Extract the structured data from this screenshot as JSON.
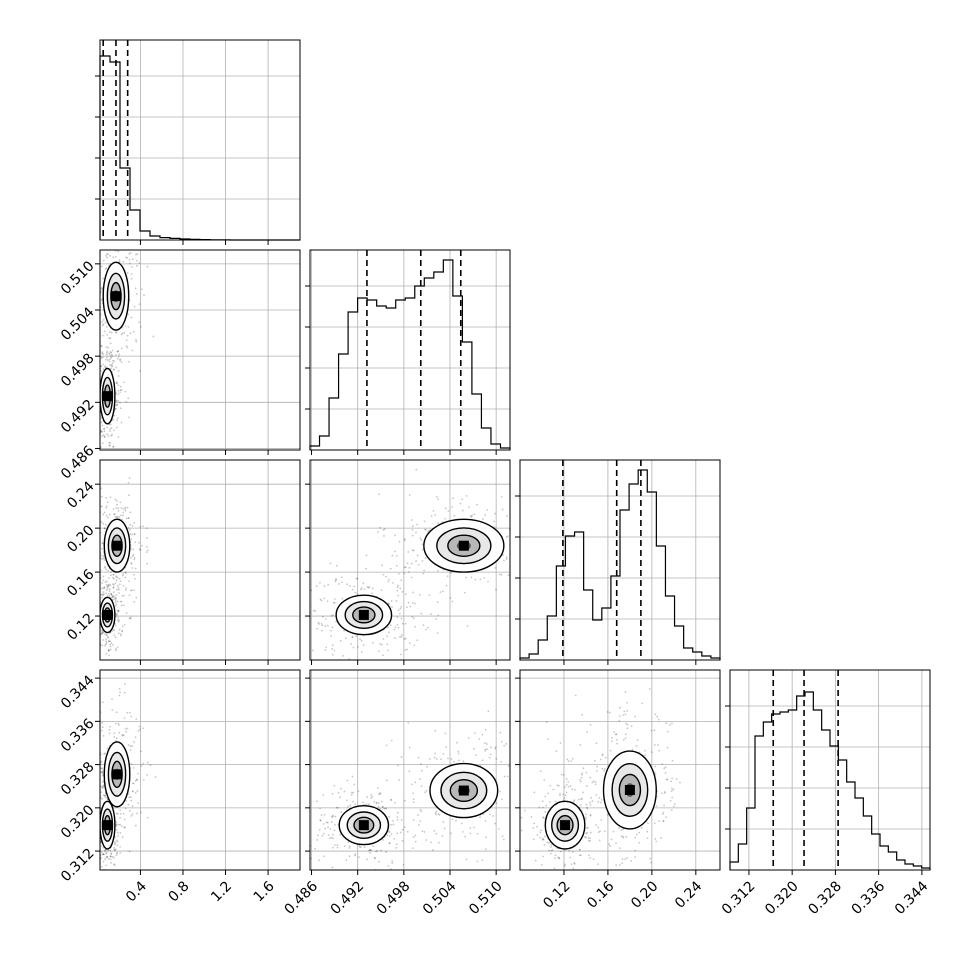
{
  "chart_data": {
    "type": "scatter",
    "subtype": "corner-plot",
    "variables": [
      {
        "ticks": [
          0.4,
          0.8,
          1.2,
          1.6
        ],
        "tick_labels": [
          "0.4",
          "0.8",
          "1.2",
          "1.6"
        ],
        "range": [
          0.02,
          1.9
        ],
        "quantiles": [
          0.05,
          0.17,
          0.28
        ],
        "hist": [
          0.92,
          0.89,
          0.36,
          0.15,
          0.045,
          0.02,
          0.012,
          0.008,
          0.005,
          0.003,
          0.002,
          0.001,
          0.0005,
          0,
          0,
          0,
          0,
          0,
          0,
          0
        ]
      },
      {
        "ticks": [
          0.486,
          0.492,
          0.498,
          0.504,
          0.51
        ],
        "tick_labels": [
          "0.486",
          "0.492",
          "0.498",
          "0.504",
          "0.510"
        ],
        "range": [
          0.4858,
          0.5118
        ],
        "quantiles": [
          0.4932,
          0.5002,
          0.5054
        ],
        "hist": [
          0.02,
          0.07,
          0.26,
          0.48,
          0.69,
          0.76,
          0.75,
          0.72,
          0.71,
          0.75,
          0.76,
          0.82,
          0.86,
          0.89,
          0.95,
          0.77,
          0.54,
          0.28,
          0.11,
          0.03,
          0.01
        ]
      },
      {
        "ticks": [
          0.12,
          0.16,
          0.2,
          0.24
        ],
        "tick_labels": [
          "0.12",
          "0.16",
          "0.20",
          "0.24"
        ],
        "range": [
          0.08,
          0.262
        ],
        "quantiles": [
          0.119,
          0.168,
          0.19
        ],
        "hist": [
          0.01,
          0.03,
          0.1,
          0.22,
          0.47,
          0.62,
          0.64,
          0.35,
          0.2,
          0.26,
          0.42,
          0.75,
          0.88,
          0.95,
          0.84,
          0.57,
          0.32,
          0.17,
          0.06,
          0.04,
          0.02,
          0.01
        ]
      },
      {
        "ticks": [
          0.312,
          0.32,
          0.328,
          0.336,
          0.344
        ],
        "tick_labels": [
          "0.312",
          "0.320",
          "0.328",
          "0.336",
          "0.344"
        ],
        "range": [
          0.3085,
          0.3455
        ],
        "quantiles": [
          0.3165,
          0.3222,
          0.3285
        ],
        "hist": [
          0.04,
          0.13,
          0.31,
          0.67,
          0.74,
          0.78,
          0.79,
          0.8,
          0.87,
          0.89,
          0.8,
          0.7,
          0.62,
          0.55,
          0.44,
          0.36,
          0.27,
          0.18,
          0.12,
          0.09,
          0.05,
          0.03,
          0.02,
          0.01
        ]
      }
    ],
    "joint_modes": [
      {
        "pair": [
          0,
          1
        ],
        "points": [
          [
            0.09,
            0.4928
          ],
          [
            0.17,
            0.5058
          ]
        ]
      },
      {
        "pair": [
          0,
          2
        ],
        "points": [
          [
            0.09,
            0.121
          ],
          [
            0.18,
            0.184
          ]
        ]
      },
      {
        "pair": [
          0,
          3
        ],
        "points": [
          [
            0.09,
            0.3168
          ],
          [
            0.18,
            0.3262
          ]
        ]
      },
      {
        "pair": [
          1,
          2
        ],
        "points": [
          [
            0.4928,
            0.121
          ],
          [
            0.5058,
            0.184
          ]
        ]
      },
      {
        "pair": [
          1,
          3
        ],
        "points": [
          [
            0.4928,
            0.3168
          ],
          [
            0.5058,
            0.3232
          ]
        ]
      },
      {
        "pair": [
          2,
          3
        ],
        "points": [
          [
            0.121,
            0.3168
          ],
          [
            0.18,
            0.3233
          ]
        ]
      }
    ],
    "quantile_line_style": "dashed",
    "grid": true,
    "colors": {
      "axes": "#000000",
      "grid": "#b0b0b0",
      "density": "#000000",
      "background": "#ffffff"
    }
  }
}
